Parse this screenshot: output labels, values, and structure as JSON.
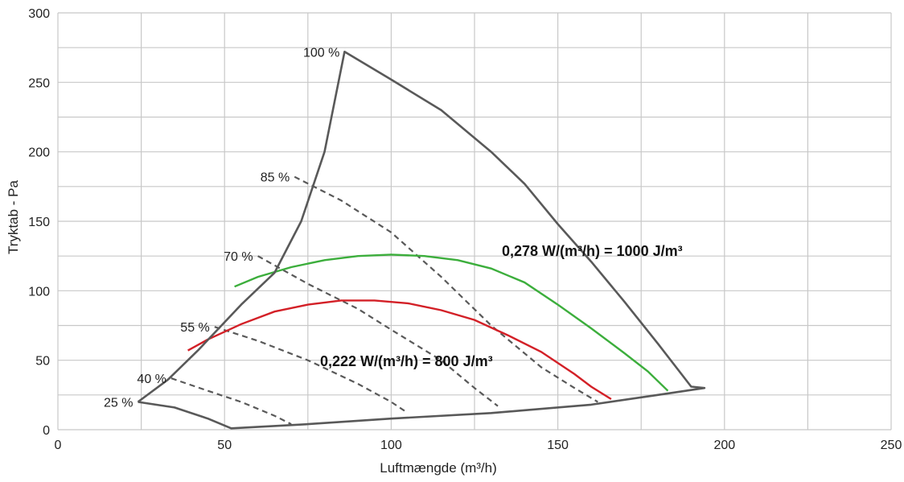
{
  "chart_data": {
    "type": "line",
    "xlabel": "Luftmængde (m³/h)",
    "ylabel": "Tryktab - Pa",
    "xlim": [
      0,
      250
    ],
    "ylim": [
      0,
      300
    ],
    "x_ticks": [
      "0",
      "50",
      "100",
      "150",
      "200",
      "250"
    ],
    "y_ticks": [
      "0",
      "50",
      "100",
      "150",
      "200",
      "250",
      "300"
    ],
    "grid": true,
    "colors": {
      "envelope": "#595959",
      "fan_curves": "#595959",
      "green": "#3cae3c",
      "red": "#d32027",
      "grid": "#c8c8c8"
    },
    "envelope": {
      "name": "",
      "points": [
        [
          24,
          20
        ],
        [
          33,
          36
        ],
        [
          42,
          57
        ],
        [
          55,
          90
        ],
        [
          65,
          113
        ],
        [
          73,
          150
        ],
        [
          80,
          200
        ],
        [
          86,
          272
        ],
        [
          100,
          252
        ],
        [
          115,
          230
        ],
        [
          130,
          200
        ],
        [
          140,
          177
        ],
        [
          150,
          148
        ],
        [
          160,
          121
        ],
        [
          170,
          92
        ],
        [
          180,
          62
        ],
        [
          190,
          31
        ],
        [
          194,
          30
        ],
        [
          180,
          25
        ],
        [
          160,
          18
        ],
        [
          130,
          12
        ],
        [
          100,
          8
        ],
        [
          75,
          4
        ],
        [
          52,
          1
        ],
        [
          45,
          8
        ],
        [
          35,
          16
        ],
        [
          24,
          20
        ]
      ]
    },
    "speed_curves": [
      {
        "label": "100 %",
        "points": []
      },
      {
        "label": "85 %",
        "points": [
          [
            71,
            182
          ],
          [
            85,
            165
          ],
          [
            100,
            142
          ],
          [
            115,
            110
          ],
          [
            130,
            75
          ],
          [
            145,
            45
          ],
          [
            155,
            30
          ],
          [
            162,
            20
          ]
        ]
      },
      {
        "label": "70 %",
        "points": [
          [
            60,
            125
          ],
          [
            75,
            105
          ],
          [
            90,
            87
          ],
          [
            100,
            72
          ],
          [
            115,
            50
          ],
          [
            125,
            30
          ],
          [
            132,
            17
          ]
        ]
      },
      {
        "label": "55 %",
        "points": [
          [
            47,
            74
          ],
          [
            60,
            64
          ],
          [
            75,
            50
          ],
          [
            90,
            33
          ],
          [
            100,
            20
          ],
          [
            105,
            12
          ]
        ]
      },
      {
        "label": "40 %",
        "points": [
          [
            34,
            37
          ],
          [
            45,
            28
          ],
          [
            55,
            20
          ],
          [
            65,
            10
          ],
          [
            70,
            4
          ]
        ]
      },
      {
        "label": "25 %",
        "points": []
      }
    ],
    "power_curves": [
      {
        "label": "0,278 W/(m³/h) = 1000 J/m³",
        "color": "#3cae3c",
        "points": [
          [
            53,
            103
          ],
          [
            60,
            110
          ],
          [
            70,
            117
          ],
          [
            80,
            122
          ],
          [
            90,
            125
          ],
          [
            100,
            126
          ],
          [
            110,
            125
          ],
          [
            120,
            122
          ],
          [
            130,
            116
          ],
          [
            140,
            106
          ],
          [
            150,
            90
          ],
          [
            160,
            73
          ],
          [
            170,
            55
          ],
          [
            177,
            42
          ],
          [
            183,
            28
          ]
        ]
      },
      {
        "label": "0,222 W/(m³/h) = 800 J/m³",
        "color": "#d32027",
        "points": [
          [
            39,
            57
          ],
          [
            45,
            65
          ],
          [
            55,
            76
          ],
          [
            65,
            85
          ],
          [
            75,
            90
          ],
          [
            85,
            93
          ],
          [
            95,
            93
          ],
          [
            105,
            91
          ],
          [
            115,
            86
          ],
          [
            125,
            79
          ],
          [
            135,
            68
          ],
          [
            145,
            56
          ],
          [
            155,
            40
          ],
          [
            160,
            31
          ],
          [
            166,
            22
          ]
        ]
      }
    ],
    "annotations": {
      "green_label": "0,278 W/(m³/h) = 1000 J/m³",
      "red_label": "0,222 W/(m³/h) = 800 J/m³"
    }
  }
}
